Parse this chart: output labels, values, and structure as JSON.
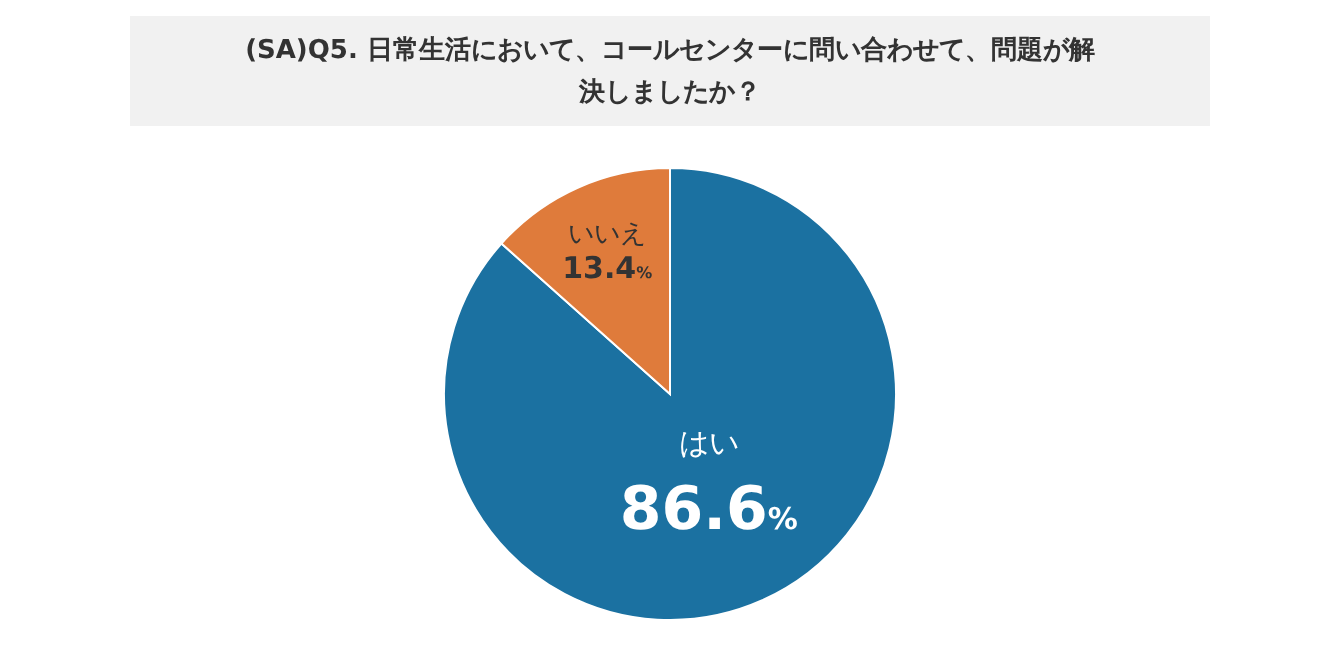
{
  "chart_data": {
    "type": "pie",
    "title": "(SA)Q5. 日常生活において、コールセンターに問い合わせて、問題が解決しましたか？",
    "categories": [
      "はい",
      "いいえ"
    ],
    "values": [
      86.6,
      13.4
    ],
    "colors": [
      "#1b71a1",
      "#df7b3b"
    ],
    "value_labels": [
      "86.6%",
      "13.4%"
    ]
  }
}
